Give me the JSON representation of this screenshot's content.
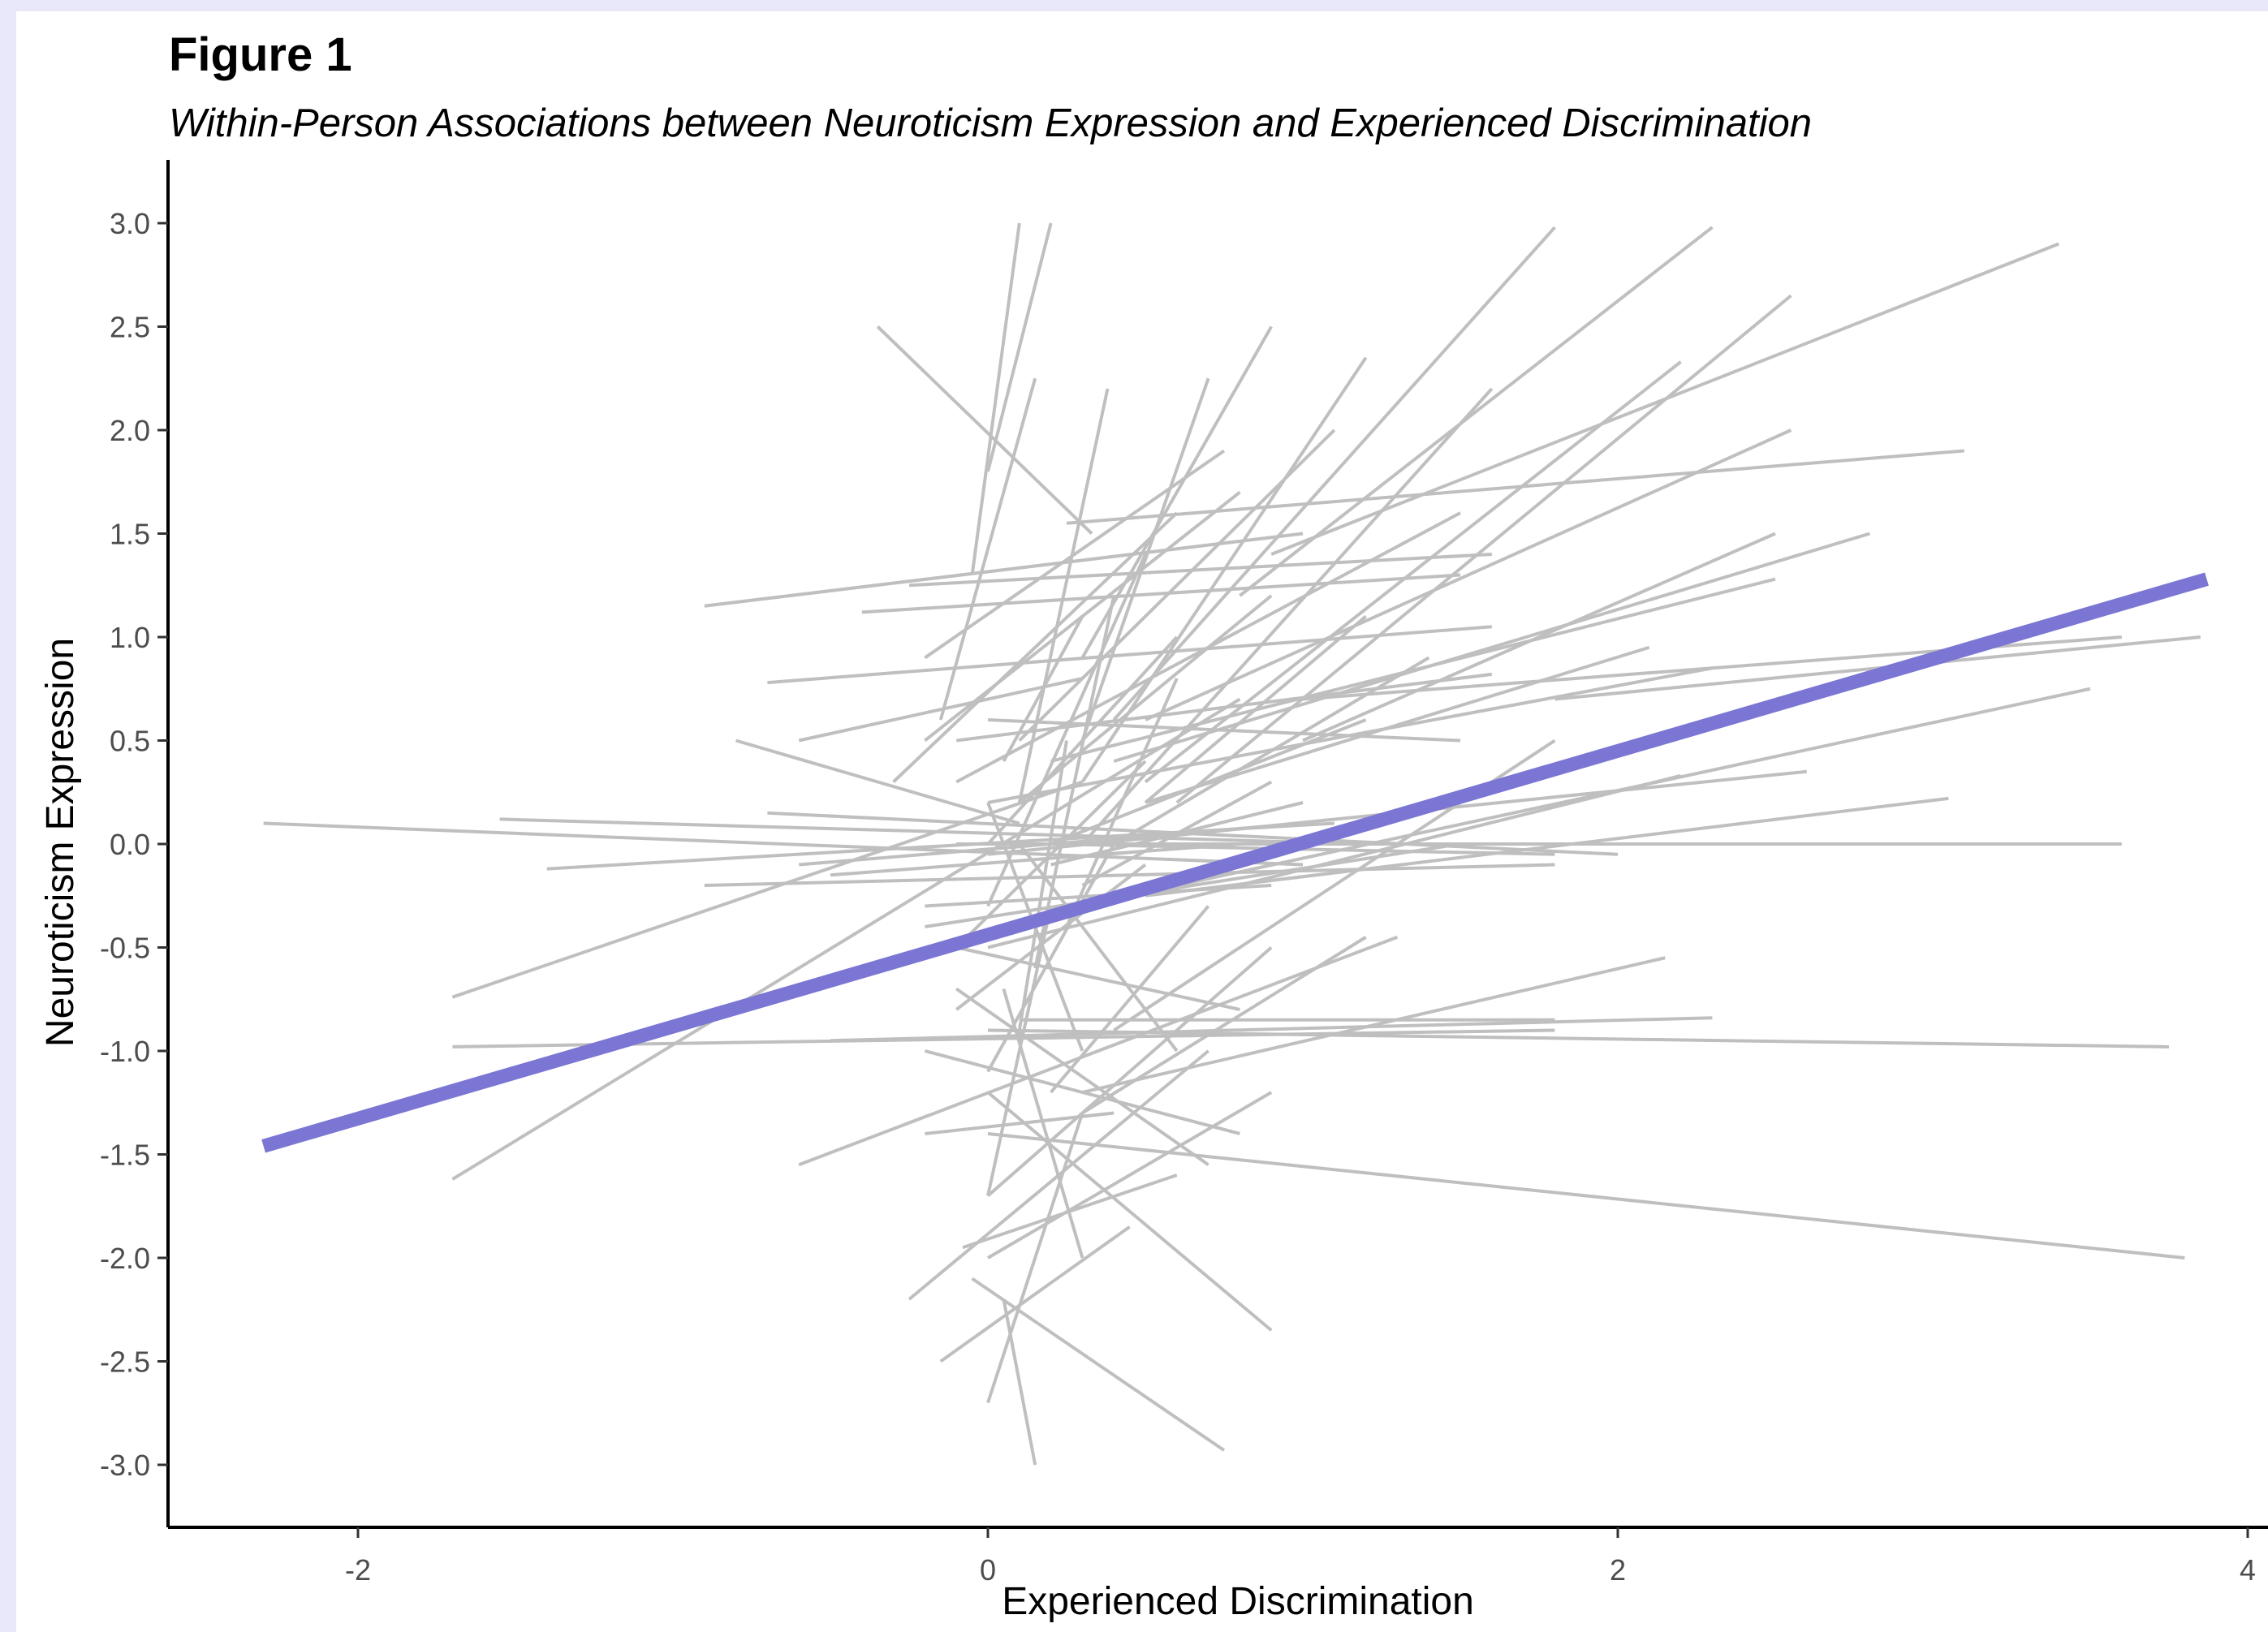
{
  "chart_data": {
    "type": "line",
    "label": "Figure 1",
    "subtitle": "Within-Person Associations between Neuroticism Expression and Experienced Discrimination",
    "xlabel": "Experienced Discrimination",
    "ylabel": "Neuroticism Expression",
    "xlim": [
      -2.5,
      4.0
    ],
    "ylim": [
      -3.3,
      3.3
    ],
    "x_ticks": [
      -2,
      0,
      2,
      4
    ],
    "y_ticks": [
      3.0,
      2.5,
      2.0,
      1.5,
      1.0,
      0.5,
      0.0,
      -0.5,
      -1.0,
      -1.5,
      -2.0,
      -2.5,
      -3.0
    ],
    "x_tick_labels": [
      "-2",
      "0",
      "2",
      "4"
    ],
    "y_tick_labels": [
      "3.0",
      "2.5",
      "2.0",
      "1.5",
      "1.0",
      "0.5",
      "0.0",
      "-0.5",
      "-1.0",
      "-1.5",
      "-2.0",
      "-2.5",
      "-3.0"
    ],
    "grid": false,
    "person_line_color": "#bfbfbf",
    "average_line_color": "#7b76d3",
    "average_line": [
      [
        -2.3,
        -1.46
      ],
      [
        3.87,
        1.28
      ]
    ],
    "person_lines": [
      [
        [
          0.1,
          3.0
        ],
        [
          -0.05,
          1.3
        ]
      ],
      [
        [
          0.2,
          3.0
        ],
        [
          0.0,
          1.8
        ]
      ],
      [
        [
          -0.35,
          2.5
        ],
        [
          0.33,
          1.5
        ]
      ],
      [
        [
          0.15,
          2.25
        ],
        [
          -0.15,
          0.6
        ]
      ],
      [
        [
          0.38,
          2.2
        ],
        [
          0.1,
          0.2
        ]
      ],
      [
        [
          0.7,
          2.25
        ],
        [
          0.3,
          0.5
        ]
      ],
      [
        [
          0.9,
          2.5
        ],
        [
          0.3,
          0.9
        ]
      ],
      [
        [
          1.2,
          2.35
        ],
        [
          0.3,
          0.3
        ]
      ],
      [
        [
          1.8,
          2.98
        ],
        [
          0.4,
          0.6
        ]
      ],
      [
        [
          2.3,
          2.98
        ],
        [
          0.8,
          1.2
        ]
      ],
      [
        [
          3.4,
          2.9
        ],
        [
          0.9,
          1.4
        ]
      ],
      [
        [
          2.55,
          2.65
        ],
        [
          0.6,
          0.2
        ]
      ],
      [
        [
          2.2,
          2.33
        ],
        [
          0.5,
          0.3
        ]
      ],
      [
        [
          1.6,
          2.2
        ],
        [
          0.3,
          0.0
        ]
      ],
      [
        [
          1.1,
          2.0
        ],
        [
          0.1,
          0.5
        ]
      ],
      [
        [
          0.75,
          1.9
        ],
        [
          -0.2,
          0.9
        ]
      ],
      [
        [
          3.1,
          1.9
        ],
        [
          0.25,
          1.55
        ]
      ],
      [
        [
          2.55,
          2.0
        ],
        [
          0.5,
          0.6
        ]
      ],
      [
        [
          2.8,
          1.5
        ],
        [
          0.4,
          0.4
        ]
      ],
      [
        [
          2.5,
          1.5
        ],
        [
          1.0,
          0.5
        ]
      ],
      [
        [
          1.6,
          1.4
        ],
        [
          -0.25,
          1.25
        ]
      ],
      [
        [
          -0.9,
          1.15
        ],
        [
          1.0,
          1.5
        ]
      ],
      [
        [
          -0.4,
          1.12
        ],
        [
          1.5,
          1.3
        ]
      ],
      [
        [
          2.5,
          1.28
        ],
        [
          0.2,
          0.4
        ]
      ],
      [
        [
          1.5,
          1.6
        ],
        [
          -0.1,
          0.3
        ]
      ],
      [
        [
          3.6,
          1.0
        ],
        [
          1.0,
          0.7
        ]
      ],
      [
        [
          3.85,
          1.0
        ],
        [
          1.8,
          0.7
        ]
      ],
      [
        [
          3.5,
          0.75
        ],
        [
          0.6,
          -0.2
        ]
      ],
      [
        [
          -0.7,
          0.78
        ],
        [
          1.6,
          1.05
        ]
      ],
      [
        [
          -0.6,
          0.5
        ],
        [
          0.3,
          0.8
        ]
      ],
      [
        [
          -0.8,
          0.5
        ],
        [
          0.1,
          0.1
        ]
      ],
      [
        [
          1.6,
          0.82
        ],
        [
          -0.1,
          0.5
        ]
      ],
      [
        [
          2.3,
          0.85
        ],
        [
          0.0,
          0.2
        ]
      ],
      [
        [
          2.1,
          0.95
        ],
        [
          0.5,
          0.2
        ]
      ],
      [
        [
          2.6,
          0.35
        ],
        [
          0.0,
          -0.05
        ]
      ],
      [
        [
          3.05,
          0.22
        ],
        [
          0.5,
          -0.25
        ]
      ],
      [
        [
          3.6,
          0.0
        ],
        [
          -0.1,
          0.0
        ]
      ],
      [
        [
          2.2,
          0.33
        ],
        [
          0.0,
          -0.5
        ]
      ],
      [
        [
          1.8,
          0.5
        ],
        [
          0.4,
          -0.9
        ]
      ],
      [
        [
          1.5,
          0.0
        ],
        [
          -0.2,
          -0.4
        ]
      ],
      [
        [
          -2.3,
          0.1
        ],
        [
          1.0,
          -0.1
        ]
      ],
      [
        [
          -1.55,
          0.12
        ],
        [
          1.2,
          0.0
        ]
      ],
      [
        [
          -1.4,
          -0.12
        ],
        [
          1.1,
          0.1
        ]
      ],
      [
        [
          -1.7,
          -0.74
        ],
        [
          0.3,
          0.3
        ]
      ],
      [
        [
          -0.9,
          -0.2
        ],
        [
          1.8,
          -0.1
        ]
      ],
      [
        [
          -0.7,
          0.15
        ],
        [
          2.0,
          -0.05
        ]
      ],
      [
        [
          -0.6,
          -0.1
        ],
        [
          1.0,
          0.1
        ]
      ],
      [
        [
          -0.5,
          -0.15
        ],
        [
          0.8,
          0.0
        ]
      ],
      [
        [
          1.8,
          -0.05
        ],
        [
          0.2,
          0.0
        ]
      ],
      [
        [
          -1.7,
          -1.62
        ],
        [
          0.8,
          0.7
        ]
      ],
      [
        [
          -1.7,
          -0.98
        ],
        [
          1.8,
          -0.9
        ]
      ],
      [
        [
          -0.5,
          -0.95
        ],
        [
          2.3,
          -0.84
        ]
      ],
      [
        [
          0.0,
          -0.9
        ],
        [
          3.75,
          -0.98
        ]
      ],
      [
        [
          0.0,
          -1.4
        ],
        [
          3.8,
          -2.0
        ]
      ],
      [
        [
          0.1,
          -0.85
        ],
        [
          1.8,
          -0.85
        ]
      ],
      [
        [
          -0.6,
          -1.55
        ],
        [
          1.3,
          -0.45
        ]
      ],
      [
        [
          2.15,
          -0.55
        ],
        [
          0.3,
          -1.2
        ]
      ],
      [
        [
          0.7,
          -1.55
        ],
        [
          -0.1,
          -0.7
        ]
      ],
      [
        [
          0.8,
          -1.4
        ],
        [
          -0.2,
          -1.0
        ]
      ],
      [
        [
          0.9,
          -1.2
        ],
        [
          0.0,
          -2.0
        ]
      ],
      [
        [
          0.9,
          -0.5
        ],
        [
          0.0,
          -1.7
        ]
      ],
      [
        [
          1.2,
          -0.45
        ],
        [
          0.3,
          -1.3
        ]
      ],
      [
        [
          0.9,
          -2.35
        ],
        [
          0.0,
          -1.2
        ]
      ],
      [
        [
          0.75,
          -2.93
        ],
        [
          -0.05,
          -2.1
        ]
      ],
      [
        [
          0.15,
          -3.0
        ],
        [
          0.05,
          -2.2
        ]
      ],
      [
        [
          0.0,
          -2.7
        ],
        [
          0.3,
          -1.3
        ]
      ],
      [
        [
          -0.15,
          -2.5
        ],
        [
          0.45,
          -1.85
        ]
      ],
      [
        [
          -0.25,
          -2.2
        ],
        [
          0.7,
          -1.0
        ]
      ],
      [
        [
          -0.08,
          -1.95
        ],
        [
          0.6,
          -1.6
        ]
      ],
      [
        [
          0.3,
          -2.0
        ],
        [
          0.05,
          -0.7
        ]
      ],
      [
        [
          0.0,
          -1.7
        ],
        [
          0.2,
          -0.3
        ]
      ],
      [
        [
          0.4,
          -1.3
        ],
        [
          -0.2,
          -1.4
        ]
      ],
      [
        [
          0.8,
          -0.8
        ],
        [
          -0.1,
          -0.5
        ]
      ],
      [
        [
          0.3,
          -1.0
        ],
        [
          0.0,
          0.2
        ]
      ],
      [
        [
          -0.1,
          -0.8
        ],
        [
          0.5,
          -0.1
        ]
      ],
      [
        [
          0.1,
          -0.9
        ],
        [
          0.25,
          0.5
        ]
      ],
      [
        [
          -0.3,
          0.3
        ],
        [
          0.6,
          1.6
        ]
      ],
      [
        [
          -0.2,
          0.5
        ],
        [
          0.8,
          1.7
        ]
      ],
      [
        [
          0.0,
          0.0
        ],
        [
          0.6,
          1.0
        ]
      ],
      [
        [
          0.1,
          0.2
        ],
        [
          0.9,
          1.2
        ]
      ],
      [
        [
          0.2,
          0.0
        ],
        [
          1.2,
          0.6
        ]
      ],
      [
        [
          0.4,
          0.0
        ],
        [
          1.4,
          0.9
        ]
      ],
      [
        [
          0.0,
          -0.3
        ],
        [
          0.5,
          1.4
        ]
      ],
      [
        [
          -0.1,
          -0.5
        ],
        [
          0.5,
          0.4
        ]
      ],
      [
        [
          0.15,
          -0.6
        ],
        [
          0.4,
          1.2
        ]
      ],
      [
        [
          0.25,
          -0.4
        ],
        [
          0.6,
          0.8
        ]
      ],
      [
        [
          0.05,
          0.4
        ],
        [
          0.3,
          1.1
        ]
      ],
      [
        [
          0.3,
          -0.2
        ],
        [
          0.9,
          0.3
        ]
      ],
      [
        [
          -0.2,
          -0.3
        ],
        [
          0.9,
          -0.2
        ]
      ],
      [
        [
          0.0,
          0.6
        ],
        [
          1.5,
          0.5
        ]
      ],
      [
        [
          0.5,
          0.2
        ],
        [
          1.2,
          1.1
        ]
      ],
      [
        [
          0.2,
          -0.1
        ],
        [
          1.0,
          0.2
        ]
      ],
      [
        [
          0.0,
          -1.1
        ],
        [
          0.4,
          0.0
        ]
      ],
      [
        [
          0.2,
          -1.2
        ],
        [
          0.7,
          -0.3
        ]
      ],
      [
        [
          0.6,
          -1.0
        ],
        [
          0.1,
          0.0
        ]
      ]
    ]
  }
}
